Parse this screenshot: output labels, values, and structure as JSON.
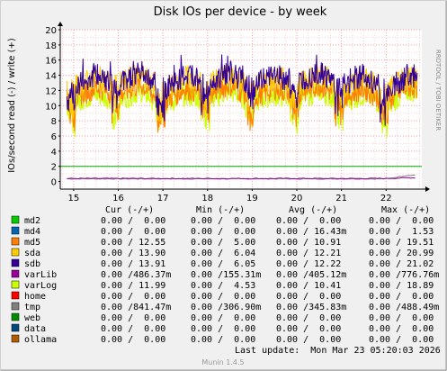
{
  "title": "Disk IOs per device - by week",
  "ylabel": "IOs/second read (-) / write (+)",
  "watermark": "RRDTOOL / TOBI OETIKER",
  "footer": "Munin 1.4.5",
  "last_update": "Last update:  Mon Mar 23 05:20:03 2026",
  "legend_headers": {
    "cur": "Cur (-/+)",
    "min": "Min (-/+)",
    "avg": "Avg (-/+)",
    "max": "Max (-/+)"
  },
  "legend": [
    {
      "name": "md2",
      "color": "#00cc00",
      "cur": "0.00 /  0.00",
      "min": "0.00 /  0.00",
      "avg": "0.00 /  0.00",
      "max": "0.00 /  0.00"
    },
    {
      "name": "md4",
      "color": "#0066b3",
      "cur": "0.00 /  0.00",
      "min": "0.00 /  0.00",
      "avg": "0.00 / 16.43m",
      "max": "0.00 /  1.53"
    },
    {
      "name": "md5",
      "color": "#ff8000",
      "cur": "0.00 / 12.55",
      "min": "0.00 /  5.00",
      "avg": "0.00 / 10.91",
      "max": "0.00 / 19.51"
    },
    {
      "name": "sda",
      "color": "#ffcc00",
      "cur": "0.00 / 13.90",
      "min": "0.00 /  6.04",
      "avg": "0.00 / 12.21",
      "max": "0.00 / 20.99"
    },
    {
      "name": "sdb",
      "color": "#330099",
      "cur": "0.00 / 13.91",
      "min": "0.00 /  6.05",
      "avg": "0.00 / 12.22",
      "max": "0.00 / 21.02"
    },
    {
      "name": "varLib",
      "color": "#990099",
      "cur": "0.00 /486.37m",
      "min": "0.00 /155.31m",
      "avg": "0.00 /405.12m",
      "max": "0.00 /776.76m"
    },
    {
      "name": "varLog",
      "color": "#ccff00",
      "cur": "0.00 / 11.99",
      "min": "0.00 /  4.53",
      "avg": "0.00 / 10.41",
      "max": "0.00 / 18.89"
    },
    {
      "name": "home",
      "color": "#ff0000",
      "cur": "0.00 /  0.00",
      "min": "0.00 /  0.00",
      "avg": "0.00 /  0.00",
      "max": "0.00 /  0.00"
    },
    {
      "name": "tmp",
      "color": "#808080",
      "cur": "0.00 /841.47m",
      "min": "0.00 /306.90m",
      "avg": "0.00 /345.83m",
      "max": "0.00 /488.49m"
    },
    {
      "name": "web",
      "color": "#008f00",
      "cur": "0.00 /  0.00",
      "min": "0.00 /  0.00",
      "avg": "0.00 /  0.00",
      "max": "0.00 /  0.00"
    },
    {
      "name": "data",
      "color": "#00487d",
      "cur": "0.00 /  0.00",
      "min": "0.00 /  0.00",
      "avg": "0.00 /  0.00",
      "max": "0.00 /  0.00"
    },
    {
      "name": "ollama",
      "color": "#b35a00",
      "cur": "0.00 /  0.00",
      "min": "0.00 /  0.00",
      "avg": "0.00 /  0.00",
      "max": "0.00 /  0.00"
    }
  ],
  "chart_data": {
    "type": "line",
    "title": "Disk IOs per device - by week",
    "ylabel": "IOs/second read (-) / write (+)",
    "xlabel": "",
    "x_ticks": [
      "15",
      "16",
      "17",
      "18",
      "19",
      "20",
      "21",
      "22"
    ],
    "x_range_days": [
      14.7,
      22.8
    ],
    "ylim": [
      -1,
      20
    ],
    "y_ticks": [
      0,
      2,
      4,
      6,
      8,
      10,
      12,
      14,
      16,
      18,
      20
    ],
    "threshold_line": 2,
    "grid": true,
    "series": [
      {
        "name": "sdb",
        "color": "#330099",
        "x": [
          15.0,
          15.5,
          16.0,
          16.5,
          17.0,
          17.5,
          18.0,
          18.5,
          19.0,
          19.5,
          20.0,
          20.5,
          21.0,
          21.5,
          22.0,
          22.5
        ],
        "values": [
          12.5,
          14.0,
          13.0,
          14.5,
          12.0,
          14.0,
          13.0,
          14.5,
          12.5,
          14.0,
          13.0,
          14.5,
          12.5,
          14.0,
          12.0,
          13.9
        ]
      },
      {
        "name": "sda",
        "color": "#ffcc00",
        "x": [
          15.0,
          15.5,
          16.0,
          16.5,
          17.0,
          17.5,
          18.0,
          18.5,
          19.0,
          19.5,
          20.0,
          20.5,
          21.0,
          21.5,
          22.0,
          22.5
        ],
        "values": [
          12.3,
          13.8,
          12.8,
          14.3,
          11.8,
          13.8,
          12.8,
          14.3,
          12.3,
          13.8,
          12.8,
          14.3,
          12.3,
          13.8,
          11.8,
          13.9
        ]
      },
      {
        "name": "md5",
        "color": "#ff8000",
        "x": [
          15.0,
          15.5,
          16.0,
          16.5,
          17.0,
          17.5,
          18.0,
          18.5,
          19.0,
          19.5,
          20.0,
          20.5,
          21.0,
          21.5,
          22.0,
          22.5
        ],
        "values": [
          11.0,
          12.5,
          11.5,
          12.8,
          10.5,
          12.3,
          11.5,
          12.8,
          11.0,
          12.3,
          11.5,
          12.8,
          11.0,
          12.3,
          10.5,
          12.5
        ]
      },
      {
        "name": "varLog",
        "color": "#ccff00",
        "x": [
          15.0,
          15.5,
          16.0,
          16.5,
          17.0,
          17.5,
          18.0,
          18.5,
          19.0,
          19.5,
          20.0,
          20.5,
          21.0,
          21.5,
          22.0,
          22.5
        ],
        "values": [
          10.5,
          11.5,
          10.8,
          12.0,
          10.0,
          11.5,
          10.8,
          12.0,
          10.5,
          11.5,
          10.8,
          12.0,
          10.5,
          11.5,
          10.0,
          12.0
        ]
      },
      {
        "name": "varLib",
        "color": "#990099",
        "x": [
          15.0,
          16.0,
          17.0,
          18.0,
          19.0,
          20.0,
          21.0,
          22.0,
          22.5
        ],
        "values": [
          0.4,
          0.4,
          0.4,
          0.4,
          0.4,
          0.4,
          0.4,
          0.4,
          0.49
        ]
      },
      {
        "name": "tmp",
        "color": "#808080",
        "x": [
          15.0,
          16.0,
          17.0,
          18.0,
          19.0,
          20.0,
          21.0,
          22.0,
          22.5
        ],
        "values": [
          0.35,
          0.35,
          0.35,
          0.35,
          0.35,
          0.35,
          0.35,
          0.35,
          0.84
        ]
      }
    ]
  }
}
